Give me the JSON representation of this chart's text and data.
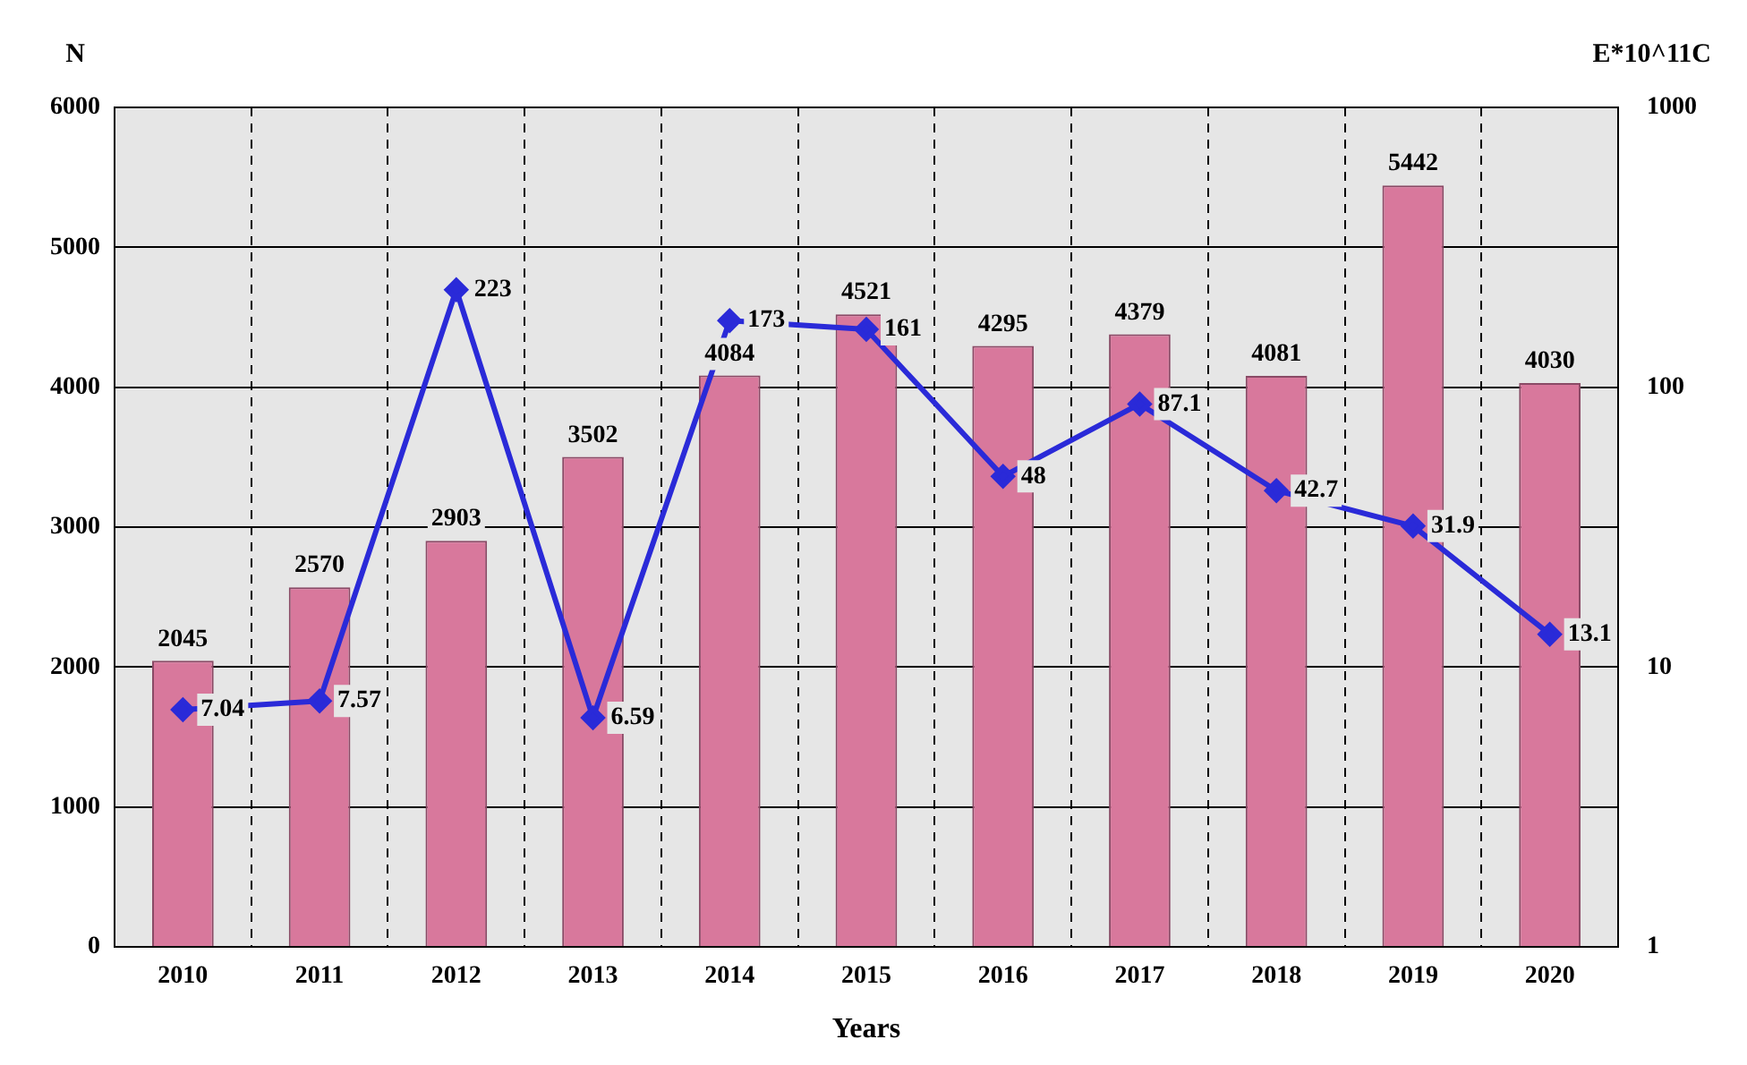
{
  "chart_data": {
    "type": "bar",
    "xlabel": "Years",
    "ylabel": "N",
    "y2label": "E*10^11C",
    "categories": [
      "2010",
      "2011",
      "2012",
      "2013",
      "2014",
      "2015",
      "2016",
      "2017",
      "2018",
      "2019",
      "2020"
    ],
    "series": [
      {
        "color": "#d8789c",
        "values": [
          2045,
          2570,
          2903,
          3502,
          4084,
          4521,
          4295,
          4379,
          4081,
          5442,
          4030
        ]
      },
      {
        "type": "line",
        "axis": "y2",
        "color": "#2a2ad8",
        "marker": "diamond",
        "values": [
          7.04,
          7.57,
          223,
          6.59,
          173,
          161,
          48,
          87.1,
          42.7,
          31.9,
          13.1
        ]
      }
    ],
    "ylim": [
      0,
      6000
    ],
    "yticks": [
      0,
      1000,
      2000,
      3000,
      4000,
      5000,
      6000
    ],
    "y2lim": [
      1,
      1000
    ],
    "y2ticks": [
      1,
      10,
      100,
      1000
    ],
    "log": "y2",
    "grid": true,
    "legend": false,
    "data_labels": true
  }
}
